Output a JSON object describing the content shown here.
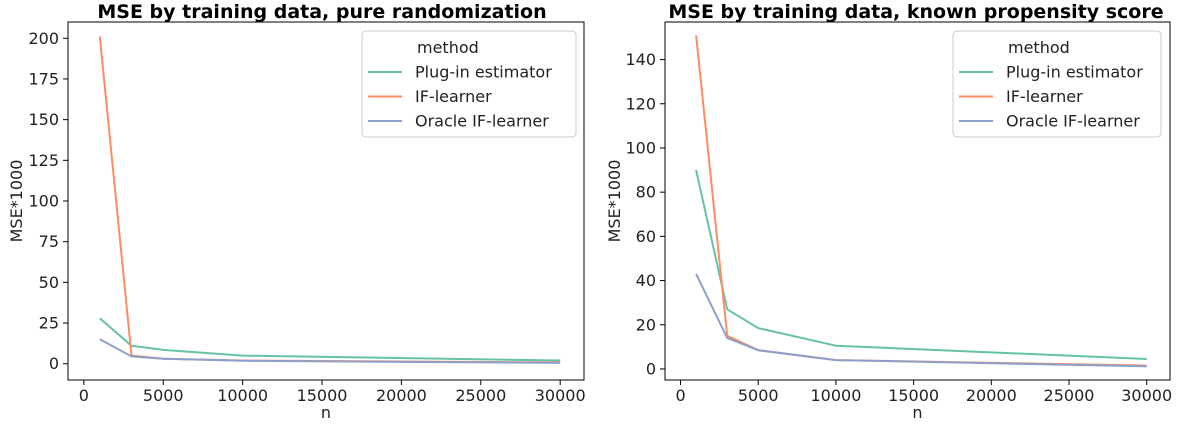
{
  "colors": {
    "plug_in": "#66c2a5",
    "if_learner": "#fc8d62",
    "oracle": "#8da0cb"
  },
  "chart_data": [
    {
      "type": "line",
      "title": "MSE by training data,  pure randomization",
      "xlabel": "n",
      "ylabel": "MSE*1000",
      "xlim": [
        -1000,
        31500
      ],
      "ylim": [
        -10,
        210
      ],
      "xticks": [
        0,
        5000,
        10000,
        15000,
        20000,
        25000,
        30000
      ],
      "yticks": [
        0,
        25,
        50,
        75,
        100,
        125,
        150,
        175,
        200
      ],
      "legend_title": "method",
      "legend_position": "top-right",
      "x": [
        1000,
        3000,
        5000,
        10000,
        30000
      ],
      "series": [
        {
          "name": "Plug-in estimator",
          "values": [
            28,
            11,
            8.5,
            5,
            2
          ]
        },
        {
          "name": "IF-learner",
          "values": [
            201,
            5,
            3,
            2,
            0.8
          ]
        },
        {
          "name": "Oracle IF-learner",
          "values": [
            15,
            4.5,
            3,
            1.8,
            0.5
          ]
        }
      ]
    },
    {
      "type": "line",
      "title": "MSE by training data,  known propensity score",
      "xlabel": "n",
      "ylabel": "MSE*1000",
      "xlim": [
        -1000,
        31500
      ],
      "ylim": [
        -5,
        157
      ],
      "xticks": [
        0,
        5000,
        10000,
        15000,
        20000,
        25000,
        30000
      ],
      "yticks": [
        0,
        20,
        40,
        60,
        80,
        100,
        120,
        140
      ],
      "legend_title": "method",
      "legend_position": "top-right",
      "x": [
        1000,
        3000,
        5000,
        10000,
        30000
      ],
      "series": [
        {
          "name": "Plug-in estimator",
          "values": [
            90,
            27,
            18.5,
            10.5,
            4.5
          ]
        },
        {
          "name": "IF-learner",
          "values": [
            151,
            15,
            8.5,
            4,
            1.5
          ]
        },
        {
          "name": "Oracle IF-learner",
          "values": [
            43,
            14,
            8.5,
            4,
            1.2
          ]
        }
      ]
    }
  ]
}
